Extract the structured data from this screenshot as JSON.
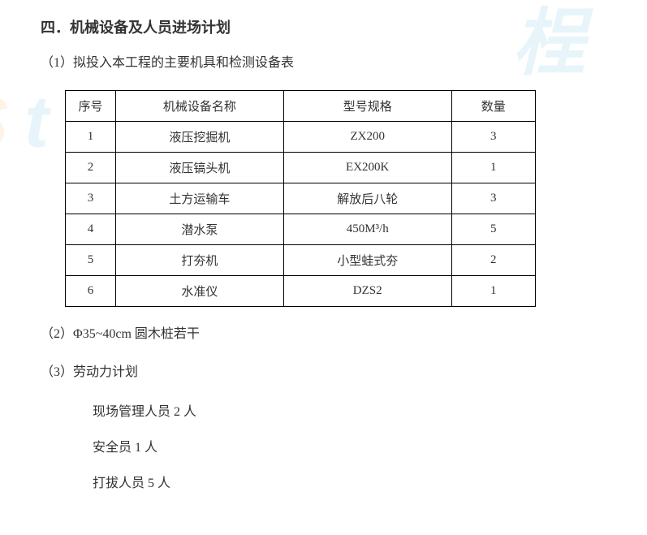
{
  "section_title": "四．机械设备及人员进场计划",
  "item1_label": "（1）拟投入本工程的主要机具和检测设备表",
  "table": {
    "headers": {
      "num": "序号",
      "name": "机械设备名称",
      "spec": "型号规格",
      "qty": "数量"
    },
    "rows": [
      {
        "num": "1",
        "name": "液压挖掘机",
        "spec": "ZX200",
        "qty": "3"
      },
      {
        "num": "2",
        "name": "液压镐头机",
        "spec": "EX200K",
        "qty": "1"
      },
      {
        "num": "3",
        "name": "土方运输车",
        "spec": "解放后八轮",
        "qty": "3"
      },
      {
        "num": "4",
        "name": "潜水泵",
        "spec": "450M³/h",
        "qty": "5"
      },
      {
        "num": "5",
        "name": "打夯机",
        "spec": "小型蛙式夯",
        "qty": "2"
      },
      {
        "num": "6",
        "name": "水准仪",
        "spec": "DZS2",
        "qty": "1"
      }
    ]
  },
  "item2_label": "（2）Φ35~40cm 圆木桩若干",
  "item3_label": "（3）劳动力计划",
  "labor": {
    "line1": "现场管理人员 2 人",
    "line2": "安全员 1 人",
    "line3": "打拔人员 5 人"
  }
}
